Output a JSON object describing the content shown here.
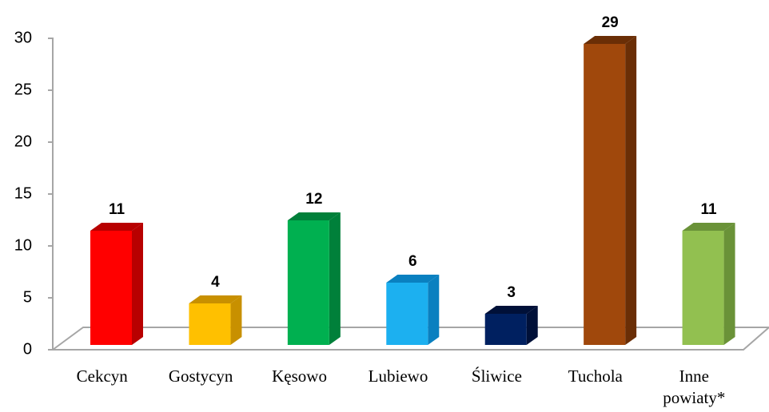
{
  "chart_data": {
    "type": "bar3d",
    "categories": [
      "Cekcyn",
      "Gostycyn",
      "Kęsowo",
      "Lubiewo",
      "Śliwice",
      "Tuchola",
      "Inne powiaty*"
    ],
    "values": [
      11,
      4,
      12,
      6,
      3,
      29,
      11
    ],
    "colors": [
      "#ff0000",
      "#ffc000",
      "#00b050",
      "#1cb0f0",
      "#002060",
      "#a0480c",
      "#92c050"
    ],
    "side_colors": [
      "#b80000",
      "#c89000",
      "#00803a",
      "#0a80c0",
      "#001038",
      "#6a2e06",
      "#6a9238"
    ],
    "ylim": [
      0,
      30
    ],
    "yticks": [
      0,
      5,
      10,
      15,
      20,
      25,
      30
    ],
    "grid": false
  }
}
